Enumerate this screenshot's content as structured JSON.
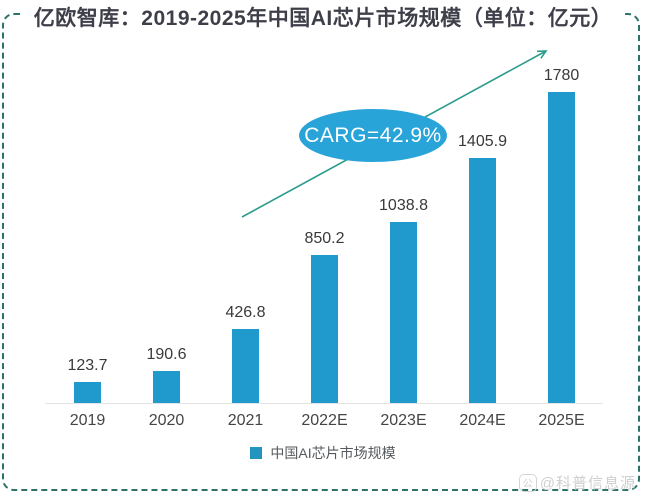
{
  "title": "亿欧智库：2019-2025年中国AI芯片市场规模（单位：亿元）",
  "annotation": {
    "label": "CARG=42.9%"
  },
  "legend": {
    "label": "中国AI芯片市场规模"
  },
  "watermark": {
    "logo_glyph": "公",
    "text": "@科普信息源"
  },
  "colors": {
    "bar": "#2099CC",
    "ellipse": "#29A4D9",
    "arrow": "#2E9C8D",
    "border_dash": "#2B7268",
    "title_text": "#3F3F4A",
    "label_text": "#3A3A3A",
    "axis_line": "#E3E3E3"
  },
  "chart_data": {
    "type": "bar",
    "title": "亿欧智库：2019-2025年中国AI芯片市场规模（单位：亿元）",
    "unit": "亿元",
    "categories": [
      "2019",
      "2020",
      "2021",
      "2022E",
      "2023E",
      "2024E",
      "2025E"
    ],
    "values": [
      123.7,
      190.6,
      426.8,
      850.2,
      1038.8,
      1405.9,
      1780
    ],
    "value_labels": [
      "123.7",
      "190.6",
      "426.8",
      "850.2",
      "1038.8",
      "1405.9",
      "1780"
    ],
    "series_name": "中国AI芯片市场规模",
    "annotation": "CARG=42.9%",
    "xlabel": "",
    "ylabel": "",
    "ylim": [
      0,
      1900
    ],
    "grid": false,
    "legend_position": "bottom",
    "y_axis_visible": false
  }
}
